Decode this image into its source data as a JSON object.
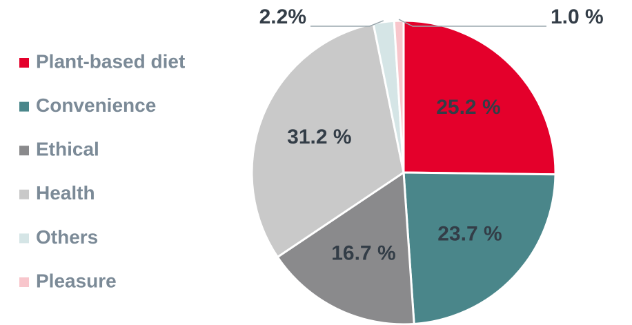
{
  "chart_data": {
    "type": "pie",
    "categories": [
      "Plant-based diet",
      "Convenience",
      "Ethical",
      "Health",
      "Others",
      "Pleasure"
    ],
    "values": [
      25.2,
      23.7,
      16.7,
      31.2,
      2.2,
      1.0
    ],
    "value_labels": [
      "25.2 %",
      "23.7 %",
      "16.7 %",
      "31.2 %",
      "2.2%",
      "1.0 %"
    ],
    "colors": [
      "#e4002b",
      "#4a868a",
      "#8a8a8c",
      "#c9c9c9",
      "#d5e5e6",
      "#f8c6cc"
    ],
    "legend": "left"
  }
}
